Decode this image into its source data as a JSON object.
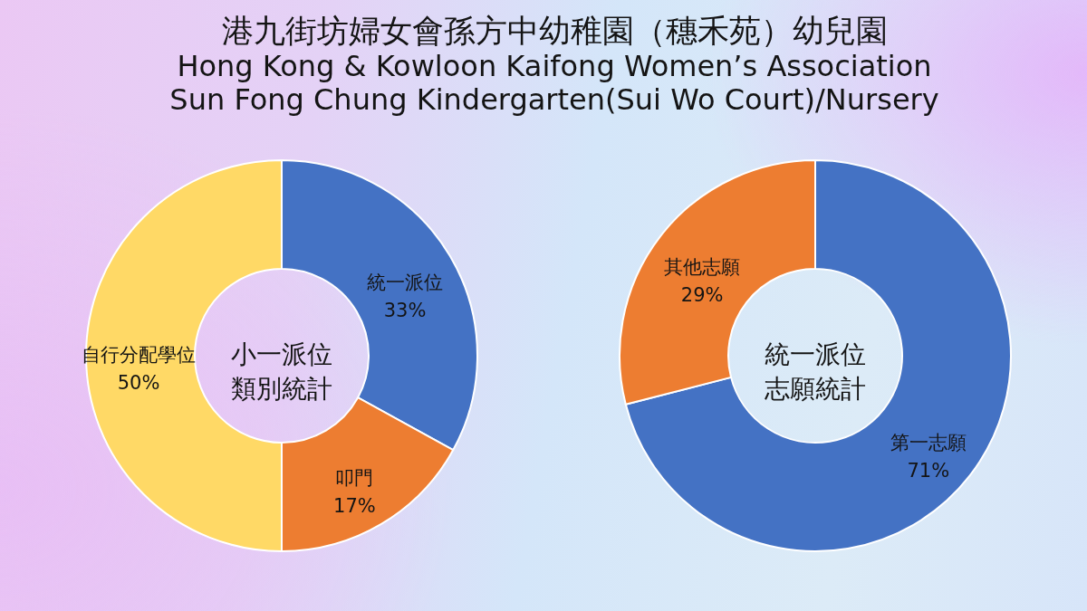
{
  "chart_data": [
    {
      "type": "other",
      "title": "港九街坊婦女會孫方中幼稚園（穗禾苑）幼兒園",
      "subtitle": "Hong Kong & Kowloon Kaifong Women’s Association\nSun Fong Chung Kindergarten(Sui Wo Court)/Nursery"
    },
    {
      "type": "donut",
      "title": "小一派位類別統計",
      "categories": [
        "統一派位",
        "叩門",
        "自行分配學位"
      ],
      "values": [
        33,
        17,
        50
      ],
      "value_labels": [
        "33%",
        "17%",
        "50%"
      ],
      "colors": [
        "#4472c4",
        "#ed7d31",
        "#ffd966"
      ]
    },
    {
      "type": "donut",
      "title": "統一派位志願統計",
      "categories": [
        "第一志願",
        "其他志願"
      ],
      "values": [
        71,
        29
      ],
      "value_labels": [
        "71%",
        "29%"
      ],
      "colors": [
        "#4472c4",
        "#ed7d31"
      ]
    }
  ]
}
